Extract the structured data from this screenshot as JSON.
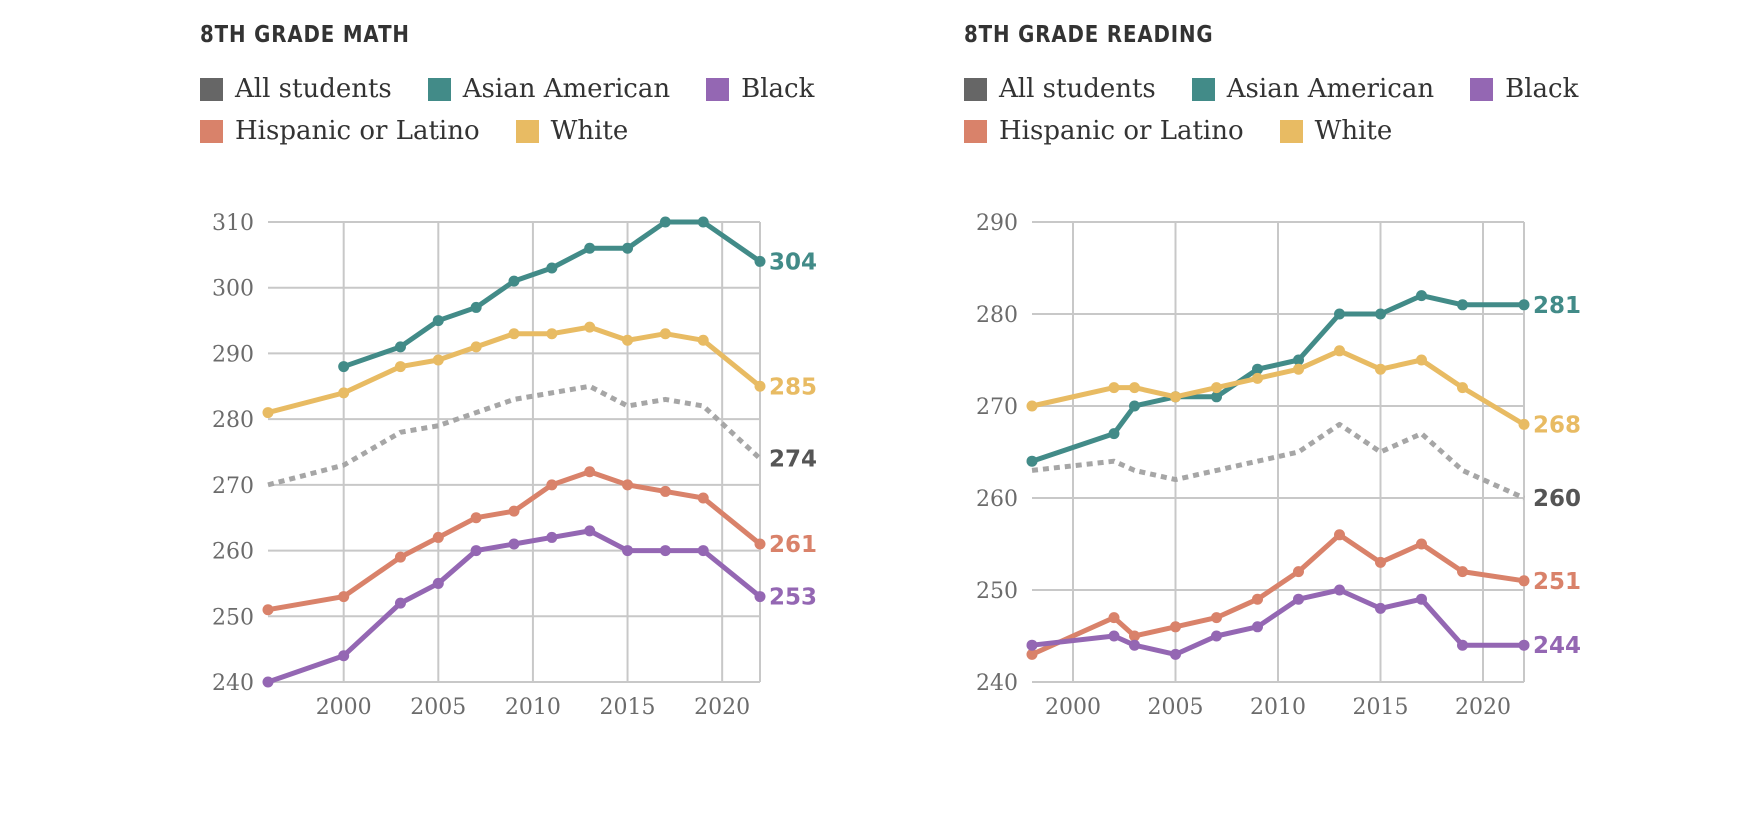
{
  "legend": {
    "row1": [
      {
        "key": "all",
        "label": "All students"
      },
      {
        "key": "asian",
        "label": "Asian American"
      },
      {
        "key": "black",
        "label": "Black"
      }
    ],
    "row2": [
      {
        "key": "hispanic",
        "label": "Hispanic or Latino"
      },
      {
        "key": "white",
        "label": "White"
      }
    ]
  },
  "colors": {
    "all": "#a6a6a6",
    "all_swatch": "#666666",
    "all_label": "#555555",
    "asian": "#428b88",
    "black": "#9467b3",
    "hispanic": "#d9826a",
    "white": "#e8bb63",
    "grid": "#c8c8c8"
  },
  "chart_data": [
    {
      "type": "line",
      "title": "8TH GRADE MATH",
      "xlim": [
        1996,
        2022
      ],
      "ylim": [
        240,
        310
      ],
      "x_ticks": [
        2000,
        2005,
        2010,
        2015,
        2020
      ],
      "y_ticks": [
        240,
        250,
        260,
        270,
        280,
        290,
        300,
        310
      ],
      "grid": true,
      "series": [
        {
          "name": "All students",
          "key": "all",
          "dashed": true,
          "x": [
            1996,
            2000,
            2003,
            2005,
            2007,
            2009,
            2011,
            2013,
            2015,
            2017,
            2019,
            2022
          ],
          "y": [
            270,
            273,
            278,
            279,
            281,
            283,
            284,
            285,
            282,
            283,
            282,
            274
          ],
          "end_label": "274"
        },
        {
          "name": "Asian American",
          "key": "asian",
          "x": [
            2000,
            2003,
            2005,
            2007,
            2009,
            2011,
            2013,
            2015,
            2017,
            2019,
            2022
          ],
          "y": [
            288,
            291,
            295,
            297,
            301,
            303,
            306,
            306,
            310,
            310,
            304
          ],
          "end_label": "304"
        },
        {
          "name": "White",
          "key": "white",
          "x": [
            1996,
            2000,
            2003,
            2005,
            2007,
            2009,
            2011,
            2013,
            2015,
            2017,
            2019,
            2022
          ],
          "y": [
            281,
            284,
            288,
            289,
            291,
            293,
            293,
            294,
            292,
            293,
            292,
            285
          ],
          "end_label": "285"
        },
        {
          "name": "Hispanic or Latino",
          "key": "hispanic",
          "x": [
            1996,
            2000,
            2003,
            2005,
            2007,
            2009,
            2011,
            2013,
            2015,
            2017,
            2019,
            2022
          ],
          "y": [
            251,
            253,
            259,
            262,
            265,
            266,
            270,
            272,
            270,
            269,
            268,
            261
          ],
          "end_label": "261"
        },
        {
          "name": "Black",
          "key": "black",
          "x": [
            1996,
            2000,
            2003,
            2005,
            2007,
            2009,
            2011,
            2013,
            2015,
            2017,
            2019,
            2022
          ],
          "y": [
            240,
            244,
            252,
            255,
            260,
            261,
            262,
            263,
            260,
            260,
            260,
            253
          ],
          "end_label": "253"
        }
      ]
    },
    {
      "type": "line",
      "title": "8TH GRADE READING",
      "xlim": [
        1998,
        2022
      ],
      "ylim": [
        240,
        290
      ],
      "x_ticks": [
        2000,
        2005,
        2010,
        2015,
        2020
      ],
      "y_ticks": [
        240,
        250,
        260,
        270,
        280,
        290
      ],
      "grid": true,
      "series": [
        {
          "name": "All students",
          "key": "all",
          "dashed": true,
          "x": [
            1998,
            2002,
            2003,
            2005,
            2007,
            2009,
            2011,
            2013,
            2015,
            2017,
            2019,
            2022
          ],
          "y": [
            263,
            264,
            263,
            262,
            263,
            264,
            265,
            268,
            265,
            267,
            263,
            260
          ],
          "end_label": "260"
        },
        {
          "name": "Asian American",
          "key": "asian",
          "x": [
            1998,
            2002,
            2003,
            2005,
            2007,
            2009,
            2011,
            2013,
            2015,
            2017,
            2019,
            2022
          ],
          "y": [
            264,
            267,
            270,
            271,
            271,
            274,
            275,
            280,
            280,
            282,
            281,
            281
          ],
          "end_label": "281"
        },
        {
          "name": "White",
          "key": "white",
          "x": [
            1998,
            2002,
            2003,
            2005,
            2007,
            2009,
            2011,
            2013,
            2015,
            2017,
            2019,
            2022
          ],
          "y": [
            270,
            272,
            272,
            271,
            272,
            273,
            274,
            276,
            274,
            275,
            272,
            268
          ],
          "end_label": "268"
        },
        {
          "name": "Hispanic or Latino",
          "key": "hispanic",
          "x": [
            1998,
            2002,
            2003,
            2005,
            2007,
            2009,
            2011,
            2013,
            2015,
            2017,
            2019,
            2022
          ],
          "y": [
            243,
            247,
            245,
            246,
            247,
            249,
            252,
            256,
            253,
            255,
            252,
            251
          ],
          "end_label": "251"
        },
        {
          "name": "Black",
          "key": "black",
          "x": [
            1998,
            2002,
            2003,
            2005,
            2007,
            2009,
            2011,
            2013,
            2015,
            2017,
            2019,
            2022
          ],
          "y": [
            244,
            245,
            244,
            243,
            245,
            246,
            249,
            250,
            248,
            249,
            244,
            244
          ],
          "end_label": "244"
        }
      ]
    }
  ]
}
